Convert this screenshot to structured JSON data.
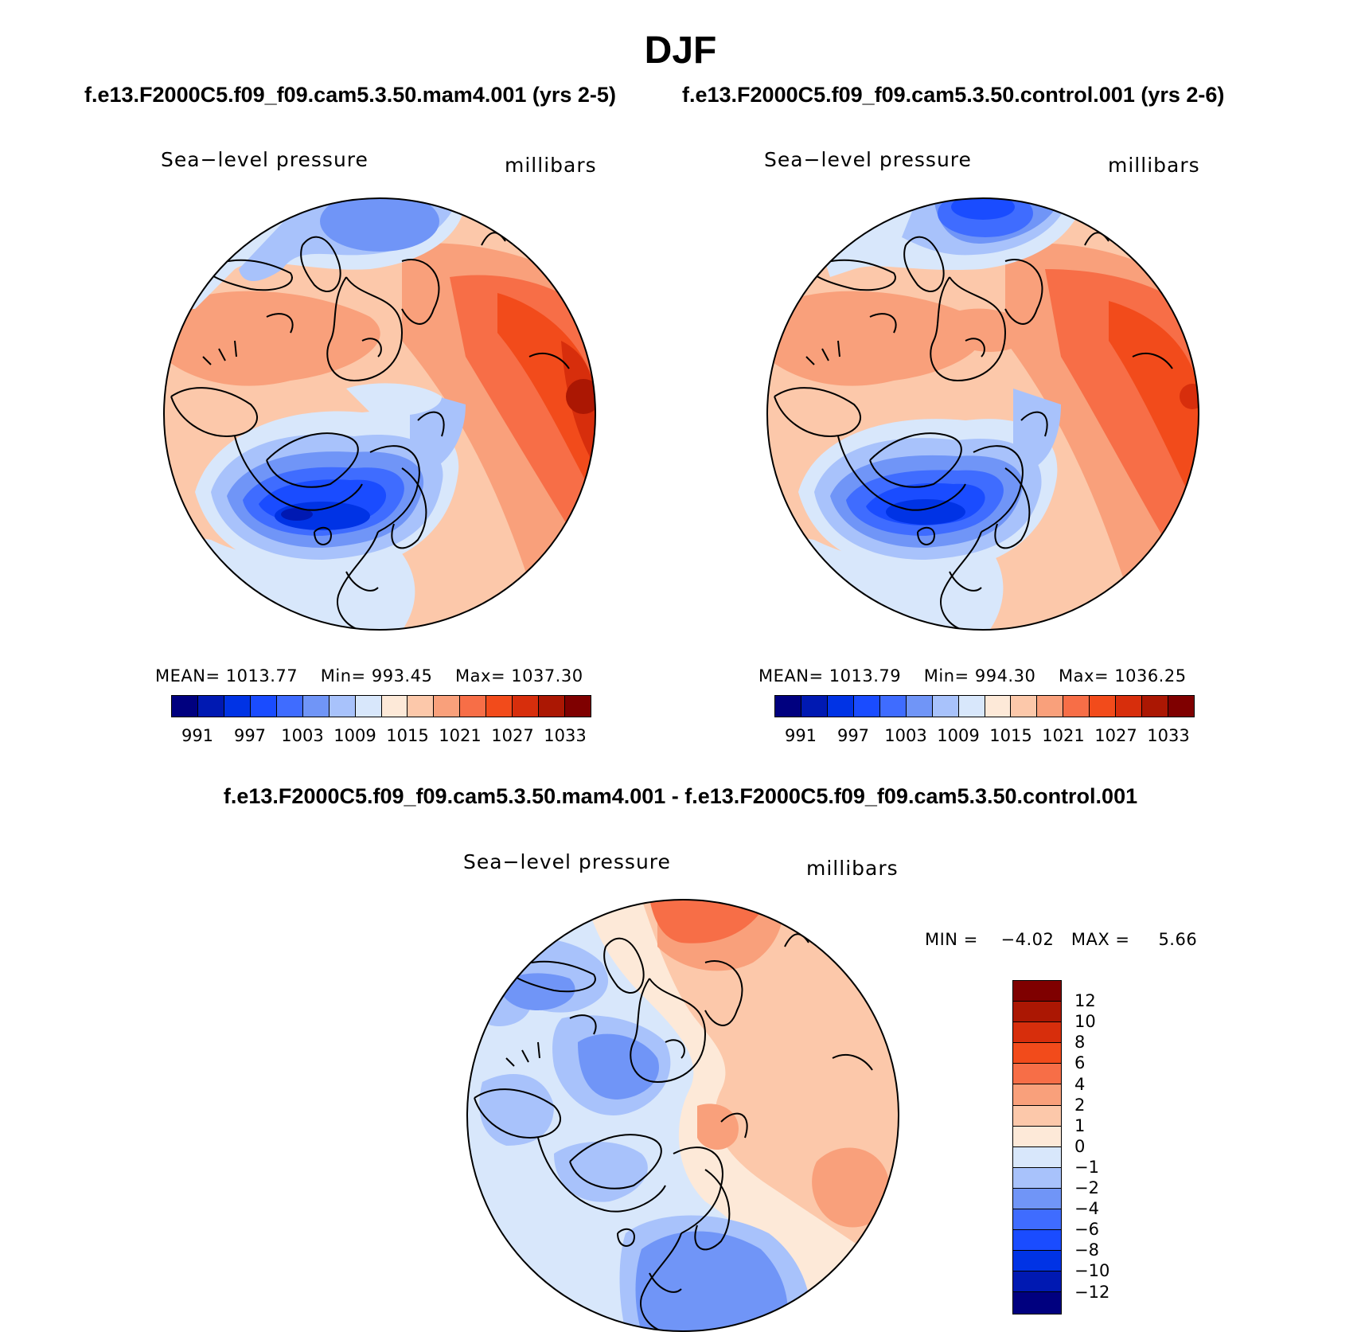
{
  "header": {
    "title": "DJF",
    "subtitle_left": "f.e13.F2000C5.f09_f09.cam5.3.50.mam4.001 (yrs 2-5)",
    "subtitle_right": "f.e13.F2000C5.f09_f09.cam5.3.50.control.001 (yrs 2-6)",
    "diff_title": "f.e13.F2000C5.f09_f09.cam5.3.50.mam4.001 - f.e13.F2000C5.f09_f09.cam5.3.50.control.001"
  },
  "panels": [
    {
      "variable": "Sea−level pressure",
      "units": "millibars",
      "mean_label": "MEAN=",
      "mean": "1013.77",
      "min_label": "Min=",
      "min": "993.45",
      "max_label": "Max=",
      "max": "1037.30"
    },
    {
      "variable": "Sea−level pressure",
      "units": "millibars",
      "mean_label": "MEAN=",
      "mean": "1013.79",
      "min_label": "Min=",
      "min": "994.30",
      "max_label": "Max=",
      "max": "1036.25"
    },
    {
      "variable": "Sea−level pressure",
      "units": "millibars",
      "min_label": "MIN =",
      "min": "−4.02",
      "max_label": "MAX =",
      "max": "5.66"
    }
  ],
  "colorbars": {
    "abs_colors": [
      "#00007f",
      "#0019b2",
      "#0033e5",
      "#1a4cff",
      "#3f6cff",
      "#7095f7",
      "#a8c2fb",
      "#d8e7fb",
      "#fde9d8",
      "#fcc8aa",
      "#f9a07b",
      "#f76e47",
      "#f24b1b",
      "#d72e0c",
      "#ab1703",
      "#7f0000"
    ],
    "abs_labels": [
      "991",
      "997",
      "1003",
      "1009",
      "1015",
      "1021",
      "1027",
      "1033"
    ],
    "diff_colors": [
      "#7f0000",
      "#ab1703",
      "#d72e0c",
      "#f24b1b",
      "#f76e47",
      "#f9a07b",
      "#fcc8aa",
      "#fde9d8",
      "#d8e7fb",
      "#a8c2fb",
      "#7095f7",
      "#3f6cff",
      "#1a4cff",
      "#0033e5",
      "#0019b2",
      "#00007f"
    ],
    "diff_labels": [
      "12",
      "10",
      "8",
      "6",
      "4",
      "2",
      "1",
      "0",
      "−1",
      "−2",
      "−4",
      "−6",
      "−8",
      "−10",
      "−12"
    ]
  }
}
